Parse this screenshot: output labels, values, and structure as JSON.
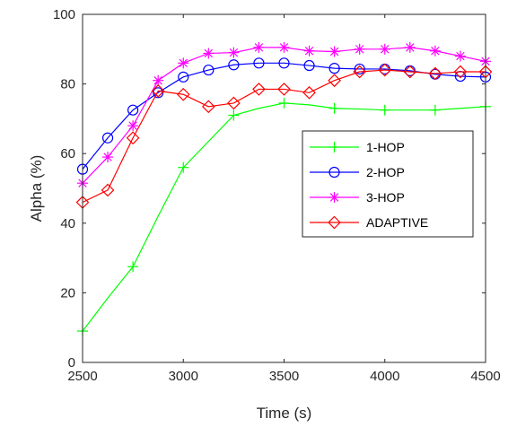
{
  "chart_data": {
    "type": "line",
    "xlabel": "Time (s)",
    "ylabel": "Alpha (%)",
    "xlim": [
      2500,
      4500
    ],
    "ylim": [
      0,
      100
    ],
    "xticks": [
      "2500",
      "3000",
      "3500",
      "4000",
      "4500"
    ],
    "yticks": [
      "0",
      "20",
      "40",
      "60",
      "80",
      "100"
    ],
    "grid": false,
    "legend_position": "middle-right",
    "x": [
      2500,
      2625,
      2750,
      2875,
      3000,
      3125,
      3250,
      3375,
      3500,
      3625,
      3750,
      3875,
      4000,
      4125,
      4250,
      4375,
      4500
    ],
    "series": [
      {
        "name": "1-HOP",
        "color": "#00ff00",
        "marker": "plus",
        "marker_x": [
          2500,
          2750,
          3000,
          3250,
          3500,
          3750,
          4000,
          4250,
          4500
        ],
        "values": [
          9,
          18.5,
          27.5,
          42,
          56,
          63.5,
          71,
          73,
          74.5,
          74,
          73,
          72.8,
          72.5,
          72.5,
          72.5,
          73,
          73.5
        ]
      },
      {
        "name": "2-HOP",
        "color": "#0000ff",
        "marker": "circle",
        "marker_x": [
          2500,
          2625,
          2750,
          2875,
          3000,
          3125,
          3250,
          3375,
          3500,
          3625,
          3750,
          3875,
          4000,
          4125,
          4250,
          4375,
          4500
        ],
        "values": [
          55.5,
          64.5,
          72.5,
          77.5,
          82,
          84,
          85.5,
          86,
          86,
          85.3,
          84.5,
          84.3,
          84.3,
          83.8,
          82.8,
          82.2,
          82
        ]
      },
      {
        "name": "3-HOP",
        "color": "#ff00ff",
        "marker": "asterisk",
        "marker_x": [
          2500,
          2625,
          2750,
          2875,
          3000,
          3125,
          3250,
          3375,
          3500,
          3625,
          3750,
          3875,
          4000,
          4125,
          4250,
          4375,
          4500
        ],
        "values": [
          51.5,
          59,
          68,
          81,
          86,
          88.8,
          89,
          90.5,
          90.5,
          89.5,
          89.3,
          90,
          90,
          90.5,
          89.5,
          88,
          86.5
        ]
      },
      {
        "name": "ADAPTIVE",
        "color": "#ff0000",
        "marker": "diamond",
        "marker_x": [
          2500,
          2625,
          2750,
          2875,
          3000,
          3125,
          3250,
          3375,
          3500,
          3625,
          3750,
          3875,
          4000,
          4125,
          4250,
          4375,
          4500
        ],
        "values": [
          46,
          49.5,
          64.5,
          78,
          77,
          73.5,
          74.5,
          78.5,
          78.5,
          77.5,
          81,
          83.5,
          84,
          83.5,
          83,
          83.5,
          83.5
        ]
      }
    ]
  }
}
